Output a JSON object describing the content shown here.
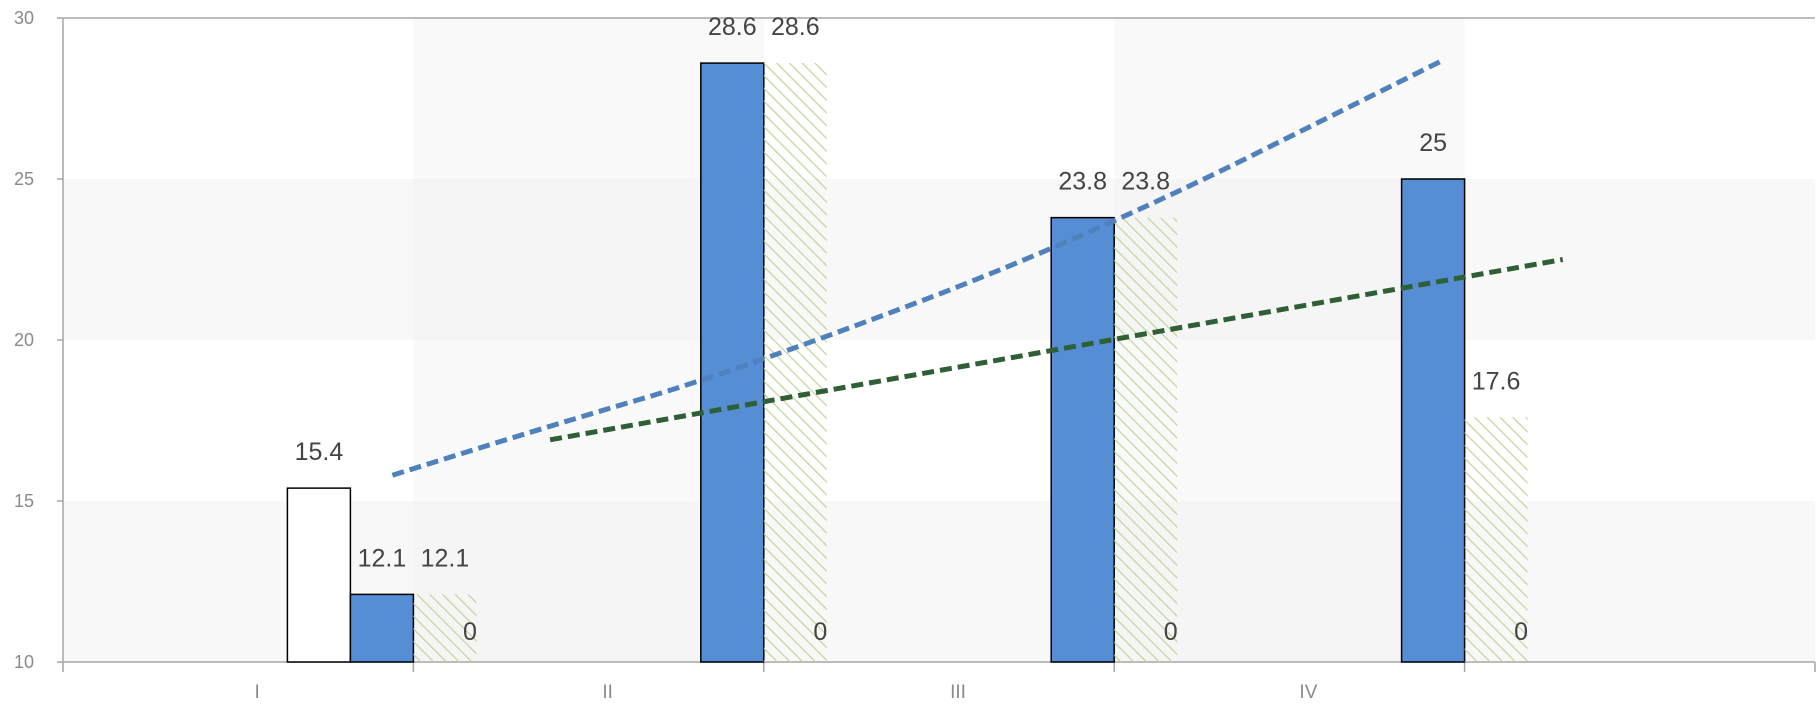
{
  "chart_data": {
    "type": "bar",
    "categories": [
      "I",
      "II",
      "III",
      "IV"
    ],
    "ylim": [
      10,
      30
    ],
    "yticks": [
      10,
      15,
      20,
      25,
      30
    ],
    "grid": false,
    "legend": "none",
    "colors": {
      "outline": "#000000",
      "blue": "#558ed5",
      "hatch": "#c3d69b",
      "trend_exp": "#4f81bd",
      "trend_linear": "#2f5f34",
      "axis": "#a6a6a6",
      "band": "#f2f2f2"
    },
    "series": [
      {
        "style": "outline",
        "values": [
          15.4,
          null,
          null,
          null
        ],
        "labels": [
          "15.4",
          "",
          "",
          ""
        ]
      },
      {
        "style": "blue",
        "values": [
          12.1,
          28.6,
          23.8,
          25
        ],
        "labels": [
          "12.1",
          "28.6",
          "23.8",
          "25"
        ]
      },
      {
        "style": "hatch",
        "values": [
          12.1,
          28.6,
          23.8,
          17.6
        ],
        "labels": [
          "12.1",
          "28.6",
          "23.8",
          "17.6"
        ]
      },
      {
        "style": "zero",
        "values": [
          0,
          0,
          0,
          0
        ],
        "labels": [
          "0",
          "0",
          "0",
          "0"
        ]
      }
    ],
    "trendlines": [
      {
        "type": "exponential",
        "style": "trend_exp",
        "points": [
          [
            0.03,
            15.8
          ],
          [
            0.5,
            17.4
          ],
          [
            1.0,
            19.0
          ],
          [
            2.0,
            23.1
          ],
          [
            3.03,
            28.7
          ]
        ]
      },
      {
        "type": "linear",
        "style": "trend_linear",
        "points": [
          [
            0.48,
            16.9
          ],
          [
            3.37,
            22.5
          ]
        ]
      }
    ]
  }
}
